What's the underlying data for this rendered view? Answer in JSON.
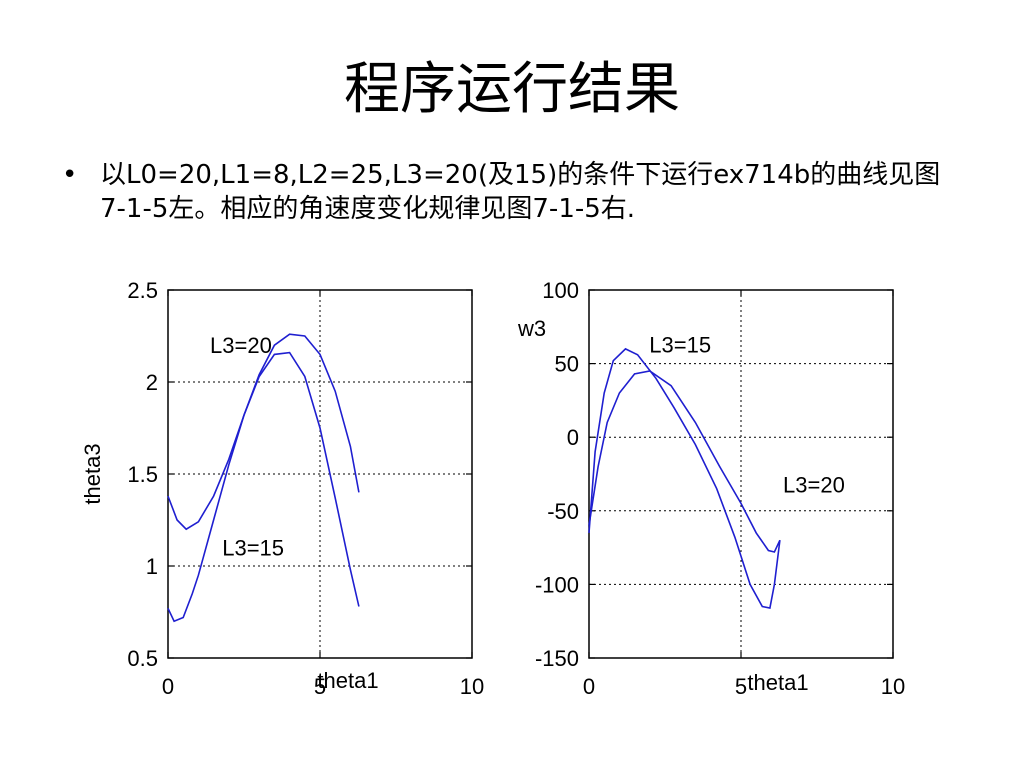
{
  "slide": {
    "title": "程序运行结果",
    "bullet_symbol": "•",
    "bullet_text": "以L0=20,L1=8,L2=25,L3=20(及15)的条件下运行ex714b的曲线见图7-1-5左。相应的角速度变化规律见图7-1-5右."
  },
  "chart_data": [
    {
      "type": "line",
      "xlabel": "theta1",
      "ylabel": "theta3",
      "xlim": [
        0,
        10
      ],
      "ylim": [
        0.5,
        2.5
      ],
      "xticks": [
        "0",
        "5",
        "10"
      ],
      "yticks": [
        "2.5",
        "2",
        "1.5",
        "1",
        "0.5"
      ],
      "grid": true,
      "color": "#1f1fd0",
      "annotations": [
        {
          "text": "L3=20",
          "x": 2.4,
          "y": 2.2
        },
        {
          "text": "L3=15",
          "x": 2.8,
          "y": 1.1
        }
      ],
      "series": [
        {
          "name": "L3=20",
          "x": [
            0,
            0.3,
            0.6,
            1.0,
            1.5,
            2.0,
            2.5,
            3.0,
            3.5,
            4.0,
            4.5,
            5.0,
            5.5,
            6.0,
            6.28
          ],
          "y": [
            1.38,
            1.25,
            1.2,
            1.24,
            1.38,
            1.58,
            1.82,
            2.04,
            2.2,
            2.26,
            2.25,
            2.15,
            1.95,
            1.65,
            1.4
          ]
        },
        {
          "name": "L3=15",
          "x": [
            0,
            0.2,
            0.5,
            0.8,
            1.0,
            1.5,
            2.0,
            2.5,
            3.0,
            3.5,
            4.0,
            4.5,
            5.0,
            5.5,
            6.0,
            6.28
          ],
          "y": [
            0.77,
            0.7,
            0.72,
            0.85,
            0.95,
            1.25,
            1.55,
            1.82,
            2.03,
            2.15,
            2.16,
            2.03,
            1.75,
            1.37,
            0.98,
            0.78
          ]
        }
      ]
    },
    {
      "type": "line",
      "xlabel": "theta1",
      "ylabel": "w3",
      "xlim": [
        0,
        10
      ],
      "ylim": [
        -150,
        100
      ],
      "xticks": [
        "0",
        "5",
        "10"
      ],
      "yticks": [
        "100",
        "50",
        "0",
        "-50",
        "-100",
        "-150"
      ],
      "grid": true,
      "color": "#1f1fd0",
      "annotations": [
        {
          "text": "L3=15",
          "x": 3.0,
          "y": 63
        },
        {
          "text": "L3=20",
          "x": 7.4,
          "y": -32
        }
      ],
      "series": [
        {
          "name": "L3=15",
          "x": [
            0,
            0.2,
            0.5,
            0.8,
            1.2,
            1.6,
            2.2,
            2.8,
            3.5,
            4.2,
            4.8,
            5.3,
            5.7,
            5.95,
            6.1,
            6.28
          ],
          "y": [
            -65,
            -10,
            30,
            52,
            60,
            56,
            40,
            20,
            -5,
            -35,
            -68,
            -100,
            -115,
            -116,
            -100,
            -70
          ]
        },
        {
          "name": "L3=20",
          "x": [
            0,
            0.3,
            0.6,
            1.0,
            1.5,
            2.0,
            2.7,
            3.5,
            4.3,
            5.0,
            5.5,
            5.9,
            6.1,
            6.28
          ],
          "y": [
            -60,
            -20,
            10,
            30,
            43,
            45,
            35,
            10,
            -20,
            -45,
            -65,
            -77,
            -78,
            -70
          ]
        }
      ]
    }
  ]
}
